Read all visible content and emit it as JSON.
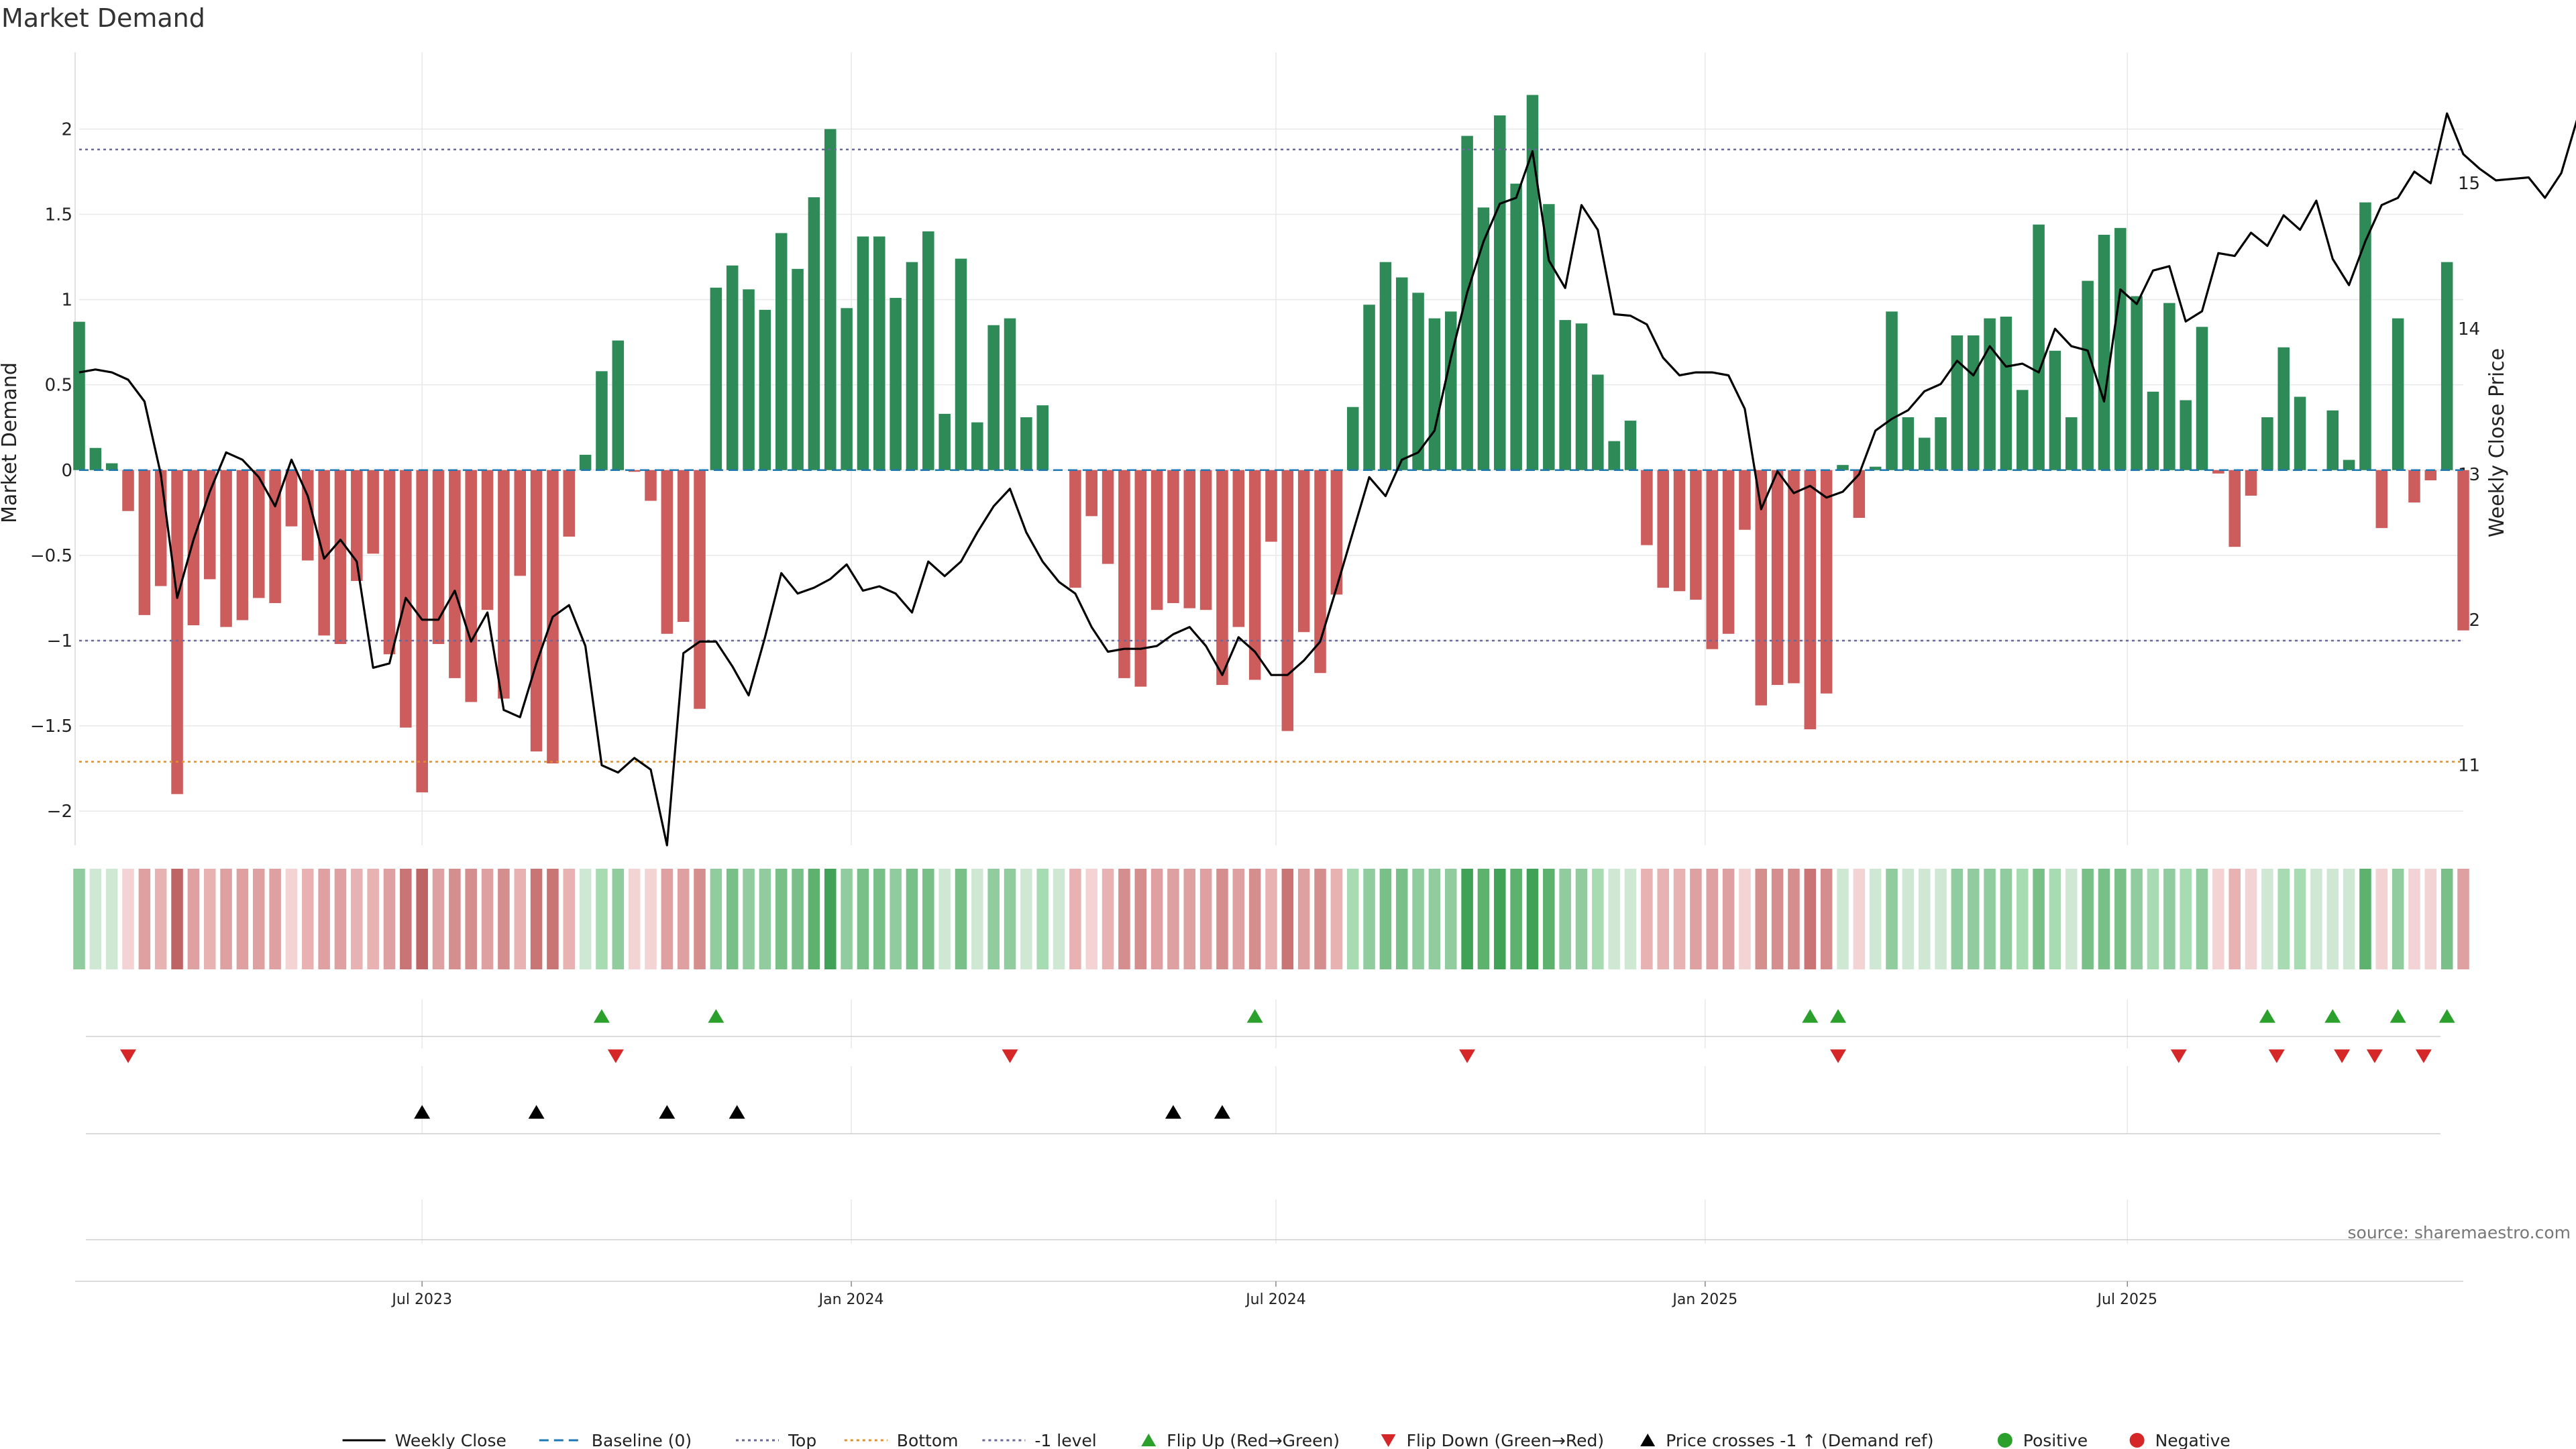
{
  "chart_data": {
    "type": "bar",
    "title": "Market Demand",
    "ylabel": "Market Demand",
    "y2label": "Weekly Close Price",
    "ylim": [
      -2.2,
      2.45
    ],
    "y2lim": [
      10.45,
      15.9
    ],
    "yticks": [
      -2,
      -1.5,
      -1,
      -0.5,
      0,
      0.5,
      1,
      1.5,
      2
    ],
    "ytick_labels": [
      "−2",
      "−1.5",
      "−1",
      "−0.5",
      "0",
      "0.5",
      "1",
      "1.5",
      "2"
    ],
    "y2ticks": [
      11,
      12,
      13,
      14,
      15
    ],
    "y2tick_labels": [
      "11",
      "12",
      "13",
      "14",
      "15"
    ],
    "x_range": [
      "2023-02-04",
      "2025-11-22"
    ],
    "date_ticks": [
      {
        "date": "2023-07-01",
        "label": "Jul 2023"
      },
      {
        "date": "2024-01-01",
        "label": "Jan 2024"
      },
      {
        "date": "2024-07-01",
        "label": "Jul 2024"
      },
      {
        "date": "2025-01-01",
        "label": "Jan 2025"
      },
      {
        "date": "2025-07-01",
        "label": "Jul 2025"
      }
    ],
    "first_week": "2023-02-04",
    "levels": {
      "baseline": 0,
      "top": 1.88,
      "bottom": -1.71,
      "minus_one": -1
    },
    "series": [
      {
        "name": "Market Demand",
        "values": [
          0.87,
          0.13,
          0.04,
          -0.24,
          -0.85,
          -0.68,
          -1.9,
          -0.91,
          -0.64,
          -0.92,
          -0.88,
          -0.75,
          -0.78,
          -0.33,
          -0.53,
          -0.97,
          -1.02,
          -0.65,
          -0.49,
          -1.08,
          -1.51,
          -1.89,
          -1.02,
          -1.22,
          -1.36,
          -0.82,
          -1.34,
          -0.62,
          -1.65,
          -1.72,
          -0.39,
          0.09,
          0.58,
          0.76,
          -0.01,
          -0.18,
          -0.96,
          -0.89,
          -1.4,
          1.07,
          1.2,
          1.06,
          0.94,
          1.39,
          1.18,
          1.6,
          2.0,
          0.95,
          1.37,
          1.37,
          1.01,
          1.22,
          1.4,
          0.33,
          1.24,
          0.28,
          0.85,
          0.89,
          0.31,
          0.38,
          0.0,
          -0.69,
          -0.27,
          -0.55,
          -1.22,
          -1.27,
          -0.82,
          -0.78,
          -0.81,
          -0.82,
          -1.26,
          -0.92,
          -1.23,
          -0.42,
          -1.53,
          -0.95,
          -1.19,
          -0.73,
          0.37,
          0.97,
          1.22,
          1.13,
          1.04,
          0.89,
          0.93,
          1.96,
          1.54,
          2.08,
          1.68,
          2.2,
          1.56,
          0.88,
          0.86,
          0.56,
          0.17,
          0.29,
          -0.44,
          -0.69,
          -0.71,
          -0.76,
          -1.05,
          -0.96,
          -0.35,
          -1.38,
          -1.26,
          -1.25,
          -1.52,
          -1.31,
          0.03,
          -0.28,
          0.02,
          0.93,
          0.31,
          0.19,
          0.31,
          0.79,
          0.79,
          0.89,
          0.9,
          0.47,
          1.44,
          0.7,
          0.31,
          1.11,
          1.38,
          1.42,
          1.02,
          0.46,
          0.98,
          0.41,
          0.84,
          -0.02,
          -0.45,
          -0.15,
          0.31,
          0.72,
          0.43,
          0.0,
          0.35,
          0.06,
          1.57,
          -0.34,
          0.89,
          -0.19,
          -0.06,
          1.22,
          -0.94
        ]
      },
      {
        "name": "Weekly Close",
        "values": [
          13.7,
          13.72,
          13.7,
          13.65,
          13.5,
          13.0,
          12.15,
          12.55,
          12.88,
          13.15,
          13.1,
          12.98,
          12.78,
          13.1,
          12.85,
          12.42,
          12.55,
          12.4,
          11.67,
          11.7,
          12.15,
          12.0,
          12.0,
          12.2,
          11.85,
          12.05,
          11.38,
          11.33,
          11.7,
          12.02,
          12.1,
          11.82,
          11.0,
          10.95,
          11.05,
          10.97,
          10.45,
          11.77,
          11.85,
          11.85,
          11.68,
          11.48,
          11.88,
          12.32,
          12.18,
          12.22,
          12.28,
          12.38,
          12.2,
          12.23,
          12.18,
          12.05,
          12.4,
          12.3,
          12.4,
          12.6,
          12.78,
          12.9,
          12.6,
          12.4,
          12.26,
          12.18,
          11.95,
          11.78,
          11.8,
          11.8,
          11.82,
          11.9,
          11.95,
          11.82,
          11.62,
          11.88,
          11.78,
          11.62,
          11.62,
          11.72,
          11.85,
          12.22,
          12.6,
          12.98,
          12.85,
          13.1,
          13.15,
          13.3,
          13.8,
          14.25,
          14.6,
          14.86,
          14.9,
          15.22,
          14.47,
          14.28,
          14.85,
          14.68,
          14.1,
          14.09,
          14.03,
          13.8,
          13.68,
          13.7,
          13.7,
          13.68,
          13.45,
          12.76,
          13.02,
          12.87,
          12.92,
          12.84,
          12.88,
          13.0,
          13.3,
          13.38,
          13.44,
          13.57,
          13.62,
          13.78,
          13.68,
          13.88,
          13.74,
          13.76,
          13.7,
          14.0,
          13.88,
          13.85,
          13.5,
          14.27,
          14.17,
          14.4,
          14.43,
          14.05,
          14.12,
          14.52,
          14.5,
          14.66,
          14.57,
          14.78,
          14.68,
          14.88,
          14.48,
          14.3,
          14.6,
          14.85,
          14.9,
          15.08,
          15.0,
          15.48,
          15.2,
          15.1,
          15.02,
          15.03,
          15.04,
          14.9,
          15.07,
          15.45,
          15.15,
          15.42
        ]
      }
    ],
    "signal_rows": [
      {
        "name": "Flip Up (Red→Green)",
        "marker": "triangle-up",
        "color": "#2ca02c",
        "dates": [
          "2023-09-16",
          "2023-11-04",
          "2024-06-22",
          "2025-02-15",
          "2025-02-27",
          "2025-08-30",
          "2025-09-27",
          "2025-10-25",
          "2025-11-15"
        ]
      },
      {
        "name": "Flip Down (Green→Red)",
        "marker": "triangle-down",
        "color": "#d62728",
        "dates": [
          "2023-02-25",
          "2023-09-22",
          "2024-03-09",
          "2024-09-21",
          "2025-02-27",
          "2025-07-23",
          "2025-09-03",
          "2025-10-01",
          "2025-10-15",
          "2025-11-05"
        ]
      },
      {
        "name": "Price crosses -1 ↑ (Demand ref)",
        "marker": "triangle-up",
        "color": "#000000",
        "dates": [
          "2023-07-01",
          "2023-08-19",
          "2023-10-14",
          "2023-11-13",
          "2024-05-18",
          "2024-06-08"
        ]
      }
    ],
    "heat_colors": {
      "positive": [
        "#cfe8d4",
        "#a7dcb3",
        "#90cc9e",
        "#79c088",
        "#5db26d",
        "#3fa257"
      ],
      "negative": [
        "#f3d3d3",
        "#e8b2b2",
        "#dea0a0",
        "#d58e8e",
        "#c97575",
        "#bf6464"
      ]
    },
    "colors": {
      "positive_bar": "#2e8b57",
      "negative_bar": "#cd5c5c",
      "price_line": "#000000",
      "baseline": "#1f77b4",
      "top": "#6a6a9a",
      "bottom": "#e08f2a",
      "minus_one": "#6a6a9a",
      "grid": "#e8e8e8"
    },
    "legend": [
      {
        "label": "Weekly Close",
        "kind": "line",
        "color": "#000000",
        "dash": ""
      },
      {
        "label": "Baseline (0)",
        "kind": "line",
        "color": "#1f77b4",
        "dash": "14,8"
      },
      {
        "label": "Top",
        "kind": "line",
        "color": "#6a6a9a",
        "dash": "4,5"
      },
      {
        "label": "Bottom",
        "kind": "line",
        "color": "#e08f2a",
        "dash": "4,5"
      },
      {
        "label": "-1 level",
        "kind": "line",
        "color": "#6a6a9a",
        "dash": "4,5"
      },
      {
        "label": "Flip Up (Red→Green)",
        "kind": "triangle-up",
        "color": "#2ca02c"
      },
      {
        "label": "Flip Down (Green→Red)",
        "kind": "triangle-down",
        "color": "#d62728"
      },
      {
        "label": "Price crosses -1 ↑ (Demand ref)",
        "kind": "triangle-up",
        "color": "#000000"
      },
      {
        "label": "Positive",
        "kind": "dot",
        "color": "#2ca02c"
      },
      {
        "label": "Negative",
        "kind": "dot",
        "color": "#d62728"
      }
    ],
    "source": "source: sharemaestro.com"
  }
}
